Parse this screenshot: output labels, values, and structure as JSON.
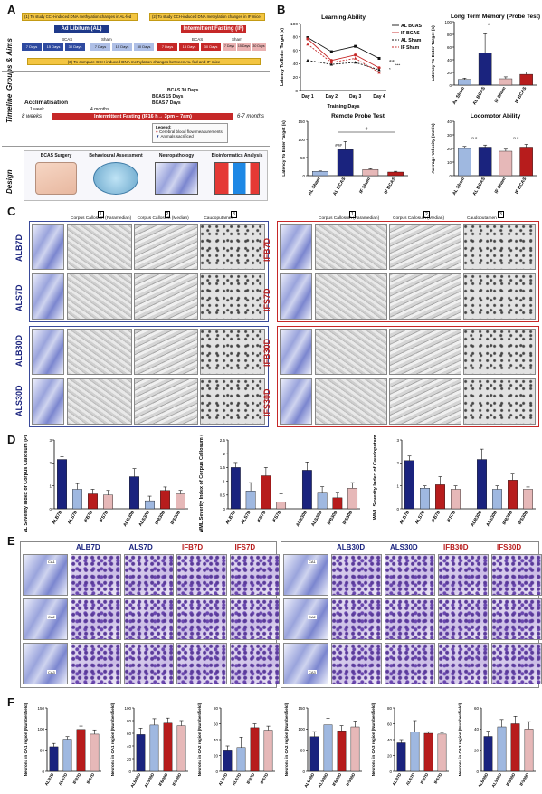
{
  "panels": {
    "A": "A",
    "B": "B",
    "C": "C",
    "D": "D",
    "E": "E",
    "F": "F"
  },
  "panelA": {
    "row_labels": [
      "Groups & Aims",
      "Timeline",
      "Design"
    ],
    "aim1": "(1) To study CCH-induced DNA methylation changes in AL-fed mice",
    "aim2": "(2) To study CCH-induced DNA methylation changes in IF mice",
    "aim3": "(3) To compare CCH-induced DNA methylation changes between AL-fed and IF mice",
    "al_title": "Ad Libitum (AL)",
    "if_title": "Intermittent Fasting (IF)",
    "bcas": "BCAS",
    "sham": "Sham",
    "durations": [
      "7 Days",
      "15 Days",
      "30 Days"
    ],
    "timeline": {
      "acclimatisation": "Acclimatisation",
      "week": "1 week",
      "start_age": "8 weeks",
      "mid": "4 months",
      "bar": "Intermittent Fasting (IF16 h→ 3pm – 7am)",
      "end_age": "6-7 months",
      "bcas30": "BCAS 30 Days",
      "bcas15": "BCAS 15 Days",
      "bcas7": "BCAS 7 Days",
      "legend_title": "Legend:",
      "legend1": "Cerebral blood flow measurements",
      "legend2": "Animals sacrificed"
    },
    "design_steps": [
      "BCAS Surgery",
      "Behavioural Assessment",
      "Neuropathology",
      "Bioinformatics Analysis"
    ]
  },
  "panelB": {
    "learning": {
      "title": "Learning Ability",
      "ylabel": "Latency To Enter Target (s)",
      "xlabel": "Training Days",
      "legend": [
        "AL BCAS",
        "IF BCAS",
        "AL Sham",
        "IF Sham"
      ],
      "sig": [
        "&&",
        "*",
        "***"
      ]
    },
    "ltm": {
      "title": "Long Term Memory (Probe Test)",
      "ylabel": "Latency To Enter Target (s)",
      "sig": "*"
    },
    "remote": {
      "title": "Remote Probe Test",
      "ylabel": "Latency To Enter Target (s)",
      "sig": [
        "###",
        "#"
      ]
    },
    "loco": {
      "title": "Locomotor Ability",
      "ylabel": "Average Velocity (mm/s)",
      "sig": [
        "n.s.",
        "n.s."
      ]
    }
  },
  "panelC": {
    "columns": [
      "Corpus Callosum (Paramedian)",
      "Corpus Callosum (Median)",
      "Caudoputamen"
    ],
    "col_nums": [
      "1",
      "2",
      "3"
    ],
    "left_rows": [
      "ALB7D",
      "ALS7D",
      "ALB30D",
      "ALS30D"
    ],
    "right_rows": [
      "IFB7D",
      "IFS7D",
      "IFB30D",
      "IFS30D"
    ]
  },
  "panelD": {
    "ylabels": [
      "WML Severity Index of Corpus Callosum (Paramedian)",
      "WML Severity Index of Corpus Callosum (Median)",
      "WML Severity Index of Caudoputamen"
    ],
    "groups": [
      "ALB7D",
      "ALS7D",
      "IFB7D",
      "IFS7D",
      "ALB30D",
      "ALS30D",
      "IFB30D",
      "IFS30D"
    ]
  },
  "panelE": {
    "headers_left": [
      "ALB7D",
      "ALS7D",
      "IFB7D",
      "IFS7D"
    ],
    "headers_right": [
      "ALB30D",
      "ALS30D",
      "IFB30D",
      "IFS30D"
    ],
    "regions": [
      "CA1",
      "CA2",
      "CA3"
    ]
  },
  "panelF": {
    "ylabels": [
      "Neurons in CA1 region (Number/field)",
      "Neurons in CA1 region (Number/field)",
      "Neurons in CA2 region (Number/field)",
      "Neurons in CA2 region (Number/field)",
      "Neurons in CA3 region (Number/field)",
      "Neurons in CA3 region (Number/field)"
    ]
  },
  "colors": {
    "al_bcas": "#1a237e",
    "al_sham": "#9fb8e0",
    "if_bcas": "#b71c1c",
    "if_sham": "#e6b8b8",
    "al_box": "#3a4a9a",
    "if_box": "#c62828"
  },
  "chart_data": [
    {
      "type": "line",
      "title": "Learning Ability",
      "xlabel": "Training Days",
      "ylabel": "Latency To Enter Target (s)",
      "categories": [
        "Day 1",
        "Day 2",
        "Day 3",
        "Day 4"
      ],
      "ylim": [
        0,
        100
      ],
      "yticks": [
        0,
        20,
        40,
        60,
        80,
        100
      ],
      "series": [
        {
          "name": "AL BCAS",
          "values": [
            79,
            58,
            66,
            48
          ]
        },
        {
          "name": "IF BCAS",
          "values": [
            77,
            45,
            53,
            34
          ]
        },
        {
          "name": "AL Sham",
          "values": [
            45,
            39,
            42,
            31
          ]
        },
        {
          "name": "IF Sham",
          "values": [
            69,
            42,
            48,
            27
          ]
        }
      ]
    },
    {
      "type": "bar",
      "title": "Long Term Memory (Probe Test)",
      "ylabel": "Latency To Enter Target (s)",
      "categories": [
        "AL Sham",
        "AL BCAS",
        "IF Sham",
        "IF BCAS"
      ],
      "values": [
        9,
        51,
        10,
        17
      ],
      "errors": [
        2,
        30,
        3,
        4
      ],
      "ylim": [
        0,
        100
      ],
      "yticks": [
        0,
        20,
        40,
        60,
        80,
        100
      ]
    },
    {
      "type": "bar",
      "title": "Remote Probe Test",
      "ylabel": "Latency To Enter Target (s)",
      "categories": [
        "AL Sham",
        "AL BCAS",
        "IF Sham",
        "IF BCAS"
      ],
      "values": [
        12,
        72,
        17,
        10
      ],
      "errors": [
        1,
        22,
        2,
        2
      ],
      "ylim": [
        0,
        150
      ],
      "yticks": [
        0,
        50,
        100,
        150
      ]
    },
    {
      "type": "bar",
      "title": "Locomotor Ability",
      "ylabel": "Average Velocity (mm/s)",
      "categories": [
        "AL Sham",
        "AL BCAS",
        "IF Sham",
        "IF BCAS"
      ],
      "values": [
        20,
        21,
        18,
        21
      ],
      "errors": [
        1.5,
        1.5,
        1.5,
        2
      ],
      "ylim": [
        0,
        40
      ],
      "yticks": [
        0,
        10,
        20,
        30,
        40
      ]
    },
    {
      "type": "bar",
      "ylabel": "WML Severity Index of Corpus Callosum (Paramedian)",
      "categories": [
        "ALB7D",
        "ALS7D",
        "IFB7D",
        "IFS7D",
        "ALB30D",
        "ALS30D",
        "IFB30D",
        "IFS30D"
      ],
      "values": [
        2.15,
        0.85,
        0.65,
        0.6,
        1.4,
        0.35,
        0.8,
        0.65
      ],
      "errors": [
        0.12,
        0.25,
        0.2,
        0.2,
        0.35,
        0.2,
        0.15,
        0.15
      ],
      "ylim": [
        0,
        3
      ],
      "yticks": [
        0,
        1,
        2,
        3
      ]
    },
    {
      "type": "bar",
      "ylabel": "WML Severity Index of Corpus Callosum (Median)",
      "categories": [
        "ALB7D",
        "ALS7D",
        "IFB7D",
        "IFS7D",
        "ALB30D",
        "ALS30D",
        "IFB30D",
        "IFS30D"
      ],
      "values": [
        1.5,
        0.65,
        1.2,
        0.25,
        1.4,
        0.6,
        0.4,
        0.75
      ],
      "errors": [
        0.18,
        0.3,
        0.3,
        0.3,
        0.3,
        0.2,
        0.2,
        0.2
      ],
      "ylim": [
        0,
        2.5
      ],
      "yticks": [
        0,
        0.5,
        1,
        1.5,
        2,
        2.5
      ]
    },
    {
      "type": "bar",
      "ylabel": "WML Severity Index of Caudoputamen",
      "categories": [
        "ALB7D",
        "ALS7D",
        "IFB7D",
        "IFS7D",
        "ALB30D",
        "ALS30D",
        "IFB30D",
        "IFS30D"
      ],
      "values": [
        2.1,
        0.9,
        1.05,
        0.85,
        2.15,
        0.85,
        1.25,
        0.85
      ],
      "errors": [
        0.2,
        0.1,
        0.35,
        0.15,
        0.45,
        0.15,
        0.3,
        0.1
      ],
      "ylim": [
        0,
        3
      ],
      "yticks": [
        0,
        1,
        2,
        3
      ]
    },
    {
      "type": "bar",
      "ylabel": "Neurons in CA1 region (Number/field)",
      "categories": [
        "ALB7D",
        "ALS7D",
        "IFB7D",
        "IFS7D"
      ],
      "values": [
        58,
        76,
        99,
        88
      ],
      "errors": [
        8,
        6,
        8,
        10
      ],
      "ylim": [
        0,
        150
      ],
      "yticks": [
        0,
        50,
        100,
        150
      ]
    },
    {
      "type": "bar",
      "ylabel": "Neurons in CA1 region (Number/field)",
      "categories": [
        "ALB30D",
        "ALS30D",
        "IFB30D",
        "IFS30D"
      ],
      "values": [
        58,
        73,
        76,
        72
      ],
      "errors": [
        10,
        10,
        8,
        8
      ],
      "ylim": [
        0,
        100
      ],
      "yticks": [
        0,
        20,
        40,
        60,
        80,
        100
      ]
    },
    {
      "type": "bar",
      "ylabel": "Neurons in CA2 region (Number/field)",
      "categories": [
        "ALB7D",
        "ALS7D",
        "IFB7D",
        "IFS7D"
      ],
      "values": [
        27,
        30,
        55,
        52
      ],
      "errors": [
        5,
        13,
        5,
        5
      ],
      "ylim": [
        0,
        80
      ],
      "yticks": [
        0,
        20,
        40,
        60,
        80
      ]
    },
    {
      "type": "bar",
      "ylabel": "Neurons in CA2 region (Number/field)",
      "categories": [
        "ALB30D",
        "ALS30D",
        "IFB30D",
        "IFS30D"
      ],
      "values": [
        82,
        110,
        96,
        105
      ],
      "errors": [
        12,
        15,
        12,
        14
      ],
      "ylim": [
        0,
        150
      ],
      "yticks": [
        0,
        50,
        100,
        150
      ]
    },
    {
      "type": "bar",
      "ylabel": "Neurons in CA3 region (Number/field)",
      "categories": [
        "ALB7D",
        "ALS7D",
        "IFB7D",
        "IFS7D"
      ],
      "values": [
        36,
        50,
        48,
        47
      ],
      "errors": [
        4,
        14,
        2,
        2
      ],
      "ylim": [
        0,
        80
      ],
      "yticks": [
        0,
        20,
        40,
        60,
        80
      ]
    },
    {
      "type": "bar",
      "ylabel": "Neurons in CA3 region (Number/field)",
      "categories": [
        "ALB30D",
        "ALS30D",
        "IFB30D",
        "IFS30D"
      ],
      "values": [
        33,
        42,
        45,
        40
      ],
      "errors": [
        5,
        7,
        7,
        7
      ],
      "ylim": [
        0,
        60
      ],
      "yticks": [
        0,
        20,
        40,
        60
      ]
    }
  ]
}
